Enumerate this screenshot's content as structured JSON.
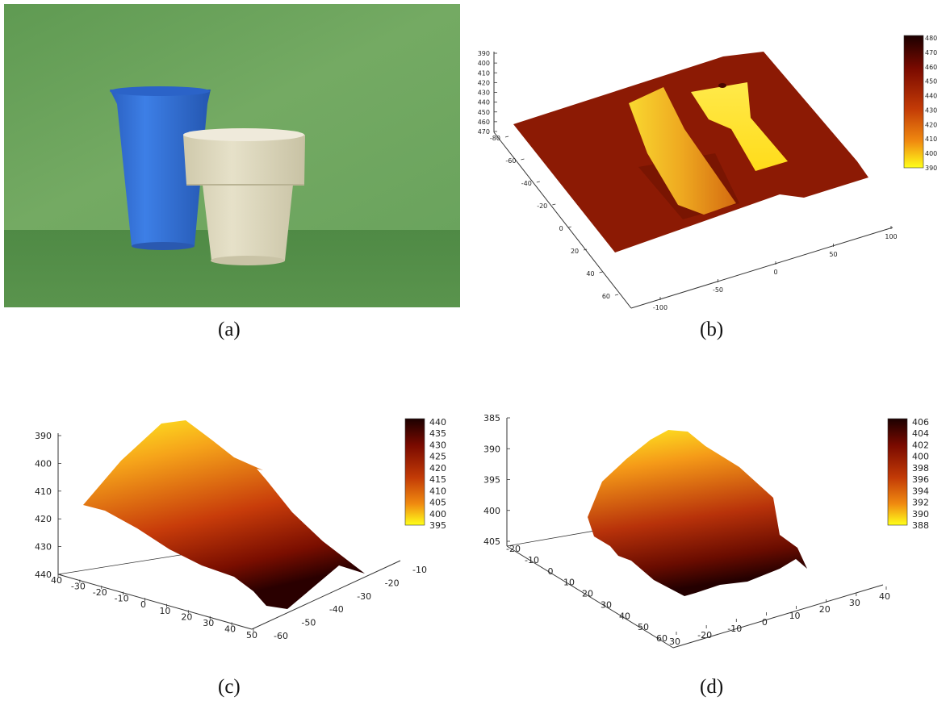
{
  "colors": {
    "background": "#6a9e5c",
    "cup": "#2f6fd6",
    "pot": "#ddd8bd",
    "cmap_low": "#ffff1a",
    "cmap_mid": "#d64a0b",
    "cmap_high": "#1c0000"
  },
  "captions": {
    "a": "(a)",
    "b": "(b)",
    "c": "(c)",
    "d": "(d)"
  },
  "photo": {
    "subject_icons": [
      "blue-cup-icon",
      "cream-pot-icon"
    ]
  },
  "chart_data": [
    {
      "panel": "b",
      "type": "surface3d",
      "grid": false,
      "z_ticks": [
        "390",
        "400",
        "410",
        "420",
        "430",
        "440",
        "450",
        "460",
        "470"
      ],
      "y_ticks": [
        "-80",
        "-60",
        "-40",
        "-20",
        "0",
        "20",
        "40",
        "60"
      ],
      "x_ticks": [
        "-100",
        "-50",
        "0",
        "50",
        "100"
      ],
      "colorbar": {
        "min": 390,
        "max": 480,
        "ticks": [
          "480",
          "470",
          "460",
          "450",
          "440",
          "430",
          "420",
          "410",
          "400",
          "390"
        ]
      }
    },
    {
      "panel": "c",
      "type": "surface3d",
      "grid": false,
      "z_ticks": [
        "390",
        "400",
        "410",
        "420",
        "430",
        "440"
      ],
      "x_ticks": [
        "40",
        "-30",
        "-20",
        "-10",
        "0",
        "10",
        "20",
        "30",
        "40",
        "50"
      ],
      "y_ticks": [
        "-60",
        "-50",
        "-40",
        "-30",
        "-20",
        "-10"
      ],
      "colorbar": {
        "min": 395,
        "max": 440,
        "ticks": [
          "440",
          "435",
          "430",
          "425",
          "420",
          "415",
          "410",
          "405",
          "400",
          "395"
        ]
      }
    },
    {
      "panel": "d",
      "type": "surface3d",
      "grid": false,
      "z_ticks": [
        "385",
        "390",
        "395",
        "400",
        "405"
      ],
      "y_ticks": [
        "-20",
        "-10",
        "0",
        "10",
        "20",
        "30",
        "40",
        "50",
        "60"
      ],
      "x_ticks": [
        "30",
        "-20",
        "-10",
        "0",
        "10",
        "20",
        "30",
        "40"
      ],
      "colorbar": {
        "min": 388,
        "max": 406,
        "ticks": [
          "406",
          "404",
          "402",
          "400",
          "398",
          "396",
          "394",
          "392",
          "390",
          "388"
        ]
      }
    }
  ]
}
